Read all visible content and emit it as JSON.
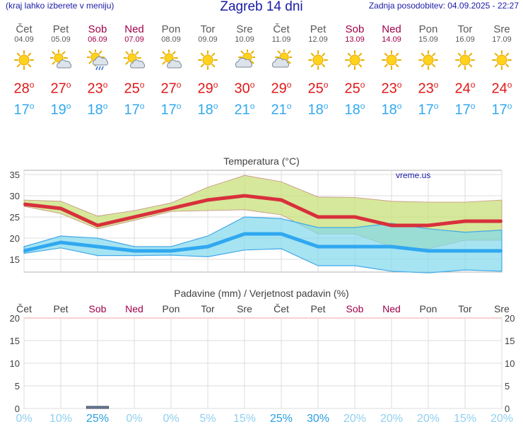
{
  "header": {
    "left_note": "(kraj lahko izberete v meniju)",
    "title": "Zagreb 14 dni",
    "updated": "Zadnja posodobitev: 04.09.2025 - 22:27"
  },
  "days": [
    {
      "name": "Čet",
      "date": "04.09",
      "weekend": false,
      "icon": "sun-icon",
      "tmax": "28",
      "tmin": "17"
    },
    {
      "name": "Pet",
      "date": "05.09",
      "weekend": false,
      "icon": "sun-cloud-icon",
      "tmax": "27",
      "tmin": "19"
    },
    {
      "name": "Sob",
      "date": "06.09",
      "weekend": true,
      "icon": "sun-cloud-rain-icon",
      "tmax": "23",
      "tmin": "18"
    },
    {
      "name": "Ned",
      "date": "07.09",
      "weekend": true,
      "icon": "sun-cloud-icon",
      "tmax": "25",
      "tmin": "17"
    },
    {
      "name": "Pon",
      "date": "08.09",
      "weekend": false,
      "icon": "sun-cloud-icon",
      "tmax": "27",
      "tmin": "17"
    },
    {
      "name": "Tor",
      "date": "09.09",
      "weekend": false,
      "icon": "sun-icon",
      "tmax": "29",
      "tmin": "18"
    },
    {
      "name": "Sre",
      "date": "10.09",
      "weekend": false,
      "icon": "cloud-sun-icon",
      "tmax": "30",
      "tmin": "21"
    },
    {
      "name": "Čet",
      "date": "11.09",
      "weekend": false,
      "icon": "cloud-sun-icon",
      "tmax": "29",
      "tmin": "21"
    },
    {
      "name": "Pet",
      "date": "12.09",
      "weekend": false,
      "icon": "sun-icon",
      "tmax": "25",
      "tmin": "18"
    },
    {
      "name": "Sob",
      "date": "13.09",
      "weekend": true,
      "icon": "sun-icon",
      "tmax": "25",
      "tmin": "18"
    },
    {
      "name": "Ned",
      "date": "14.09",
      "weekend": true,
      "icon": "sun-icon",
      "tmax": "23",
      "tmin": "18"
    },
    {
      "name": "Pon",
      "date": "15.09",
      "weekend": false,
      "icon": "sun-icon",
      "tmax": "23",
      "tmin": "17"
    },
    {
      "name": "Tor",
      "date": "16.09",
      "weekend": false,
      "icon": "sun-icon",
      "tmax": "24",
      "tmin": "17"
    },
    {
      "name": "Sre",
      "date": "17.09",
      "weekend": false,
      "icon": "sun-icon",
      "tmax": "24",
      "tmin": "17"
    }
  ],
  "degree_symbol": "o",
  "colors": {
    "tmax": "#e01818",
    "tmin": "#30a8f0",
    "weekday": "#5a5a5a",
    "weekend": "#a0004a",
    "header": "#1a1aa6",
    "max_line": "#d8303c",
    "max_band": "#c8e07a",
    "min_line": "#30a8f0",
    "min_band": "#80d8ec",
    "overlap": "#7cc87a",
    "prob_text": "#90d0f0",
    "prob_strong": "#2aa0e0"
  },
  "chart_data": [
    {
      "type": "line",
      "title": "Temperatura (°C)",
      "watermark": "vreme.us",
      "x": [
        "04.09",
        "05.09",
        "06.09",
        "07.09",
        "08.09",
        "09.09",
        "10.09",
        "11.09",
        "12.09",
        "13.09",
        "14.09",
        "15.09",
        "16.09",
        "17.09"
      ],
      "ylim": [
        12,
        36
      ],
      "yticks": [
        15,
        20,
        25,
        30,
        35
      ],
      "grid": true,
      "series": [
        {
          "values": [
            28,
            27,
            23,
            25,
            27,
            29,
            30,
            29,
            25,
            25,
            23,
            23,
            24,
            24
          ]
        },
        {
          "values": [
            17,
            19,
            18,
            17,
            17,
            18,
            21,
            21,
            18,
            18,
            18,
            17,
            17,
            17
          ]
        }
      ],
      "bands": [
        {
          "upper": [
            29,
            28.7,
            25.2,
            26.5,
            28.3,
            32,
            34.8,
            33.3,
            29.7,
            29.6,
            28.7,
            28.5,
            28.5,
            29
          ],
          "lower": [
            27.5,
            25.8,
            22.2,
            24.2,
            26.3,
            26.5,
            26.7,
            25.5,
            21,
            21,
            18,
            17.5,
            19.5,
            19.5
          ]
        },
        {
          "upper": [
            18,
            20.5,
            20,
            18,
            18,
            20.5,
            25,
            24.6,
            22.5,
            22.5,
            23.5,
            22.2,
            21.4,
            21.9
          ],
          "lower": [
            16.4,
            17.7,
            15.9,
            15.9,
            16,
            15.6,
            17.2,
            17.5,
            13.5,
            13.5,
            12.2,
            11.8,
            12.5,
            12.2
          ]
        }
      ]
    },
    {
      "type": "bar",
      "title": "Padavine (mm) / Verjetnost padavin (%)",
      "categories": [
        "Čet",
        "Pet",
        "Sob",
        "Ned",
        "Pon",
        "Tor",
        "Sre",
        "Čet",
        "Pet",
        "Sob",
        "Ned",
        "Pon",
        "Tor",
        "Sre"
      ],
      "weekend": [
        false,
        false,
        true,
        true,
        false,
        false,
        false,
        false,
        false,
        true,
        true,
        false,
        false,
        false
      ],
      "ylim": [
        0,
        20
      ],
      "yticks": [
        0,
        5,
        10,
        15,
        20
      ],
      "values": [
        0,
        0,
        0.4,
        0,
        0,
        0,
        0,
        0,
        0,
        0,
        0,
        0,
        0,
        0
      ],
      "probability": [
        "0%",
        "10%",
        "25%",
        "0%",
        "0%",
        "5%",
        "15%",
        "25%",
        "30%",
        "20%",
        "20%",
        "20%",
        "15%",
        "20%"
      ]
    }
  ]
}
